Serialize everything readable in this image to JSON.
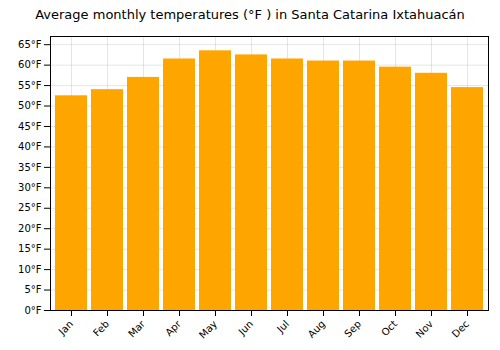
{
  "chart_data": {
    "type": "bar",
    "title": "Average monthly temperatures (°F ) in Santa Catarina Ixtahuacán",
    "categories": [
      "Jan",
      "Feb",
      "Mar",
      "Apr",
      "May",
      "Jun",
      "Jul",
      "Aug",
      "Sep",
      "Oct",
      "Nov",
      "Dec"
    ],
    "values": [
      52.5,
      54.0,
      57.0,
      61.5,
      63.5,
      62.5,
      61.5,
      61.0,
      61.0,
      59.5,
      58.0,
      54.5
    ],
    "color": "#FFA500",
    "ylim": [
      0,
      67
    ],
    "yticks": [
      {
        "value": 0,
        "label": "0°F"
      },
      {
        "value": 5,
        "label": "5°F"
      },
      {
        "value": 10,
        "label": "10°F"
      },
      {
        "value": 15,
        "label": "15°F"
      },
      {
        "value": 20,
        "label": "20°F"
      },
      {
        "value": 25,
        "label": "25°F"
      },
      {
        "value": 30,
        "label": "30°F"
      },
      {
        "value": 35,
        "label": "35°F"
      },
      {
        "value": 40,
        "label": "40°F"
      },
      {
        "value": 45,
        "label": "45°F"
      },
      {
        "value": 50,
        "label": "50°F"
      },
      {
        "value": 55,
        "label": "55°F"
      },
      {
        "value": 60,
        "label": "60°F"
      },
      {
        "value": 65,
        "label": "65°F"
      }
    ],
    "grid": true
  }
}
